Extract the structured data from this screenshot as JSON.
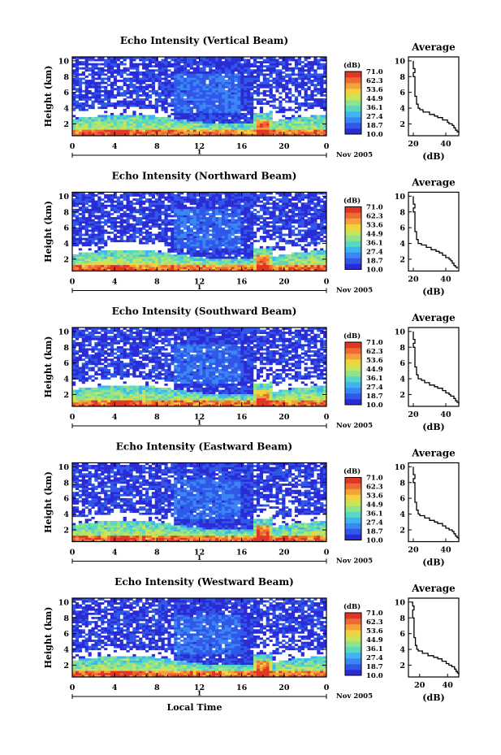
{
  "colors": {
    "colormap": [
      "#2b2bd6",
      "#2f57e8",
      "#3a86f5",
      "#3fb4f0",
      "#58d7c2",
      "#8ee38c",
      "#c8e55a",
      "#f2d13e",
      "#f5a13a",
      "#ef6a32",
      "#e03626"
    ],
    "background": "#ffffff",
    "profile_line": "#000000"
  },
  "common": {
    "time_label": "Local Time",
    "date_label": "Nov 2005",
    "day_marker": "1",
    "units_label": "(dB)",
    "avg_title": "Average",
    "avg_xlabel": "(dB)"
  },
  "chart_data": [
    {
      "type": "heatmap",
      "title": "Echo Intensity (Vertical Beam)",
      "ylabel": "Height (km)",
      "xlabel": "Local Time",
      "x_ticks": [
        "0",
        "4",
        "8",
        "12",
        "16",
        "20",
        "0"
      ],
      "xlim": [
        0,
        24
      ],
      "y_ticks": [
        "2",
        "4",
        "6",
        "8",
        "10"
      ],
      "ylim": [
        0.5,
        10.5
      ],
      "colorbar_ticks": [
        "71.0",
        "62.3",
        "53.6",
        "44.9",
        "36.1",
        "27.4",
        "18.7",
        "10.0"
      ],
      "colorbar_range": [
        10.0,
        71.0
      ],
      "average_profile": {
        "title": "Average",
        "xlabel": "(dB)",
        "x_ticks": [
          "20",
          "40"
        ],
        "xlim": [
          17,
          48
        ],
        "y_ticks": [
          "2",
          "4",
          "6",
          "8",
          "10"
        ],
        "ylim": [
          0.5,
          10.5
        ],
        "heights": [
          10,
          9.5,
          9,
          8.5,
          8,
          7.5,
          7,
          6.5,
          6,
          5.5,
          5,
          4.5,
          4,
          3.8,
          3.5,
          3.2,
          3,
          2.8,
          2.5,
          2.2,
          2,
          1.8,
          1.5,
          1.2,
          1,
          0.8
        ],
        "values": [
          20,
          20,
          20,
          21,
          20,
          21,
          21,
          21,
          21,
          21,
          22,
          22,
          23,
          24,
          26,
          30,
          33,
          35,
          38,
          41,
          42,
          44,
          45,
          46,
          47,
          48
        ]
      }
    },
    {
      "type": "heatmap",
      "title": "Echo Intensity (Northward Beam)",
      "ylabel": "Height (km)",
      "xlabel": "Local Time",
      "x_ticks": [
        "0",
        "4",
        "8",
        "12",
        "16",
        "20",
        "0"
      ],
      "xlim": [
        0,
        24
      ],
      "y_ticks": [
        "2",
        "4",
        "6",
        "8",
        "10"
      ],
      "ylim": [
        0.5,
        10.5
      ],
      "colorbar_ticks": [
        "71.0",
        "62.3",
        "53.6",
        "44.9",
        "36.1",
        "27.4",
        "18.7",
        "10.0"
      ],
      "colorbar_range": [
        10.0,
        71.0
      ],
      "average_profile": {
        "title": "Average",
        "xlabel": "(dB)",
        "x_ticks": [
          "20",
          "40"
        ],
        "xlim": [
          17,
          48
        ],
        "y_ticks": [
          "2",
          "4",
          "6",
          "8",
          "10"
        ],
        "ylim": [
          0.5,
          10.5
        ],
        "heights": [
          10,
          9.5,
          9,
          8.5,
          8,
          7.5,
          7,
          6.5,
          6,
          5.5,
          5,
          4.5,
          4,
          3.8,
          3.5,
          3.2,
          3,
          2.8,
          2.5,
          2.2,
          2,
          1.8,
          1.5,
          1.2,
          1,
          0.8
        ],
        "values": [
          20,
          20,
          20,
          21,
          20,
          21,
          21,
          21,
          21,
          21,
          22,
          22,
          23,
          25,
          28,
          31,
          34,
          36,
          38,
          40,
          42,
          43,
          44,
          45,
          46,
          47
        ]
      }
    },
    {
      "type": "heatmap",
      "title": "Echo Intensity (Southward Beam)",
      "ylabel": "Height (km)",
      "xlabel": "Local Time",
      "x_ticks": [
        "0",
        "4",
        "8",
        "12",
        "16",
        "20",
        "0"
      ],
      "xlim": [
        0,
        24
      ],
      "y_ticks": [
        "2",
        "4",
        "6",
        "8",
        "10"
      ],
      "ylim": [
        0.5,
        10.5
      ],
      "colorbar_ticks": [
        "71.0",
        "62.3",
        "53.6",
        "44.9",
        "36.1",
        "27.4",
        "18.7",
        "10.0"
      ],
      "colorbar_range": [
        10.0,
        71.0
      ],
      "average_profile": {
        "title": "Average",
        "xlabel": "(dB)",
        "x_ticks": [
          "20",
          "40"
        ],
        "xlim": [
          17,
          48
        ],
        "y_ticks": [
          "2",
          "4",
          "6",
          "8",
          "10"
        ],
        "ylim": [
          0.5,
          10.5
        ],
        "heights": [
          10,
          9.5,
          9,
          8.5,
          8,
          7.5,
          7,
          6.5,
          6,
          5.5,
          5,
          4.5,
          4,
          3.8,
          3.5,
          3.2,
          3,
          2.8,
          2.5,
          2.2,
          2,
          1.8,
          1.5,
          1.2,
          1,
          0.8
        ],
        "values": [
          20,
          20,
          20,
          21,
          20,
          21,
          21,
          21,
          21,
          21,
          22,
          22,
          23,
          25,
          27,
          30,
          33,
          35,
          38,
          40,
          42,
          43,
          45,
          46,
          47,
          48
        ]
      }
    },
    {
      "type": "heatmap",
      "title": "Echo Intensity (Eastward Beam)",
      "ylabel": "Height (km)",
      "xlabel": "Local Time",
      "x_ticks": [
        "0",
        "4",
        "8",
        "12",
        "16",
        "20",
        "0"
      ],
      "xlim": [
        0,
        24
      ],
      "y_ticks": [
        "2",
        "4",
        "6",
        "8",
        "10"
      ],
      "ylim": [
        0.5,
        10.5
      ],
      "colorbar_ticks": [
        "71.0",
        "62.3",
        "53.6",
        "44.9",
        "36.1",
        "27.4",
        "18.7",
        "10.0"
      ],
      "colorbar_range": [
        10.0,
        71.0
      ],
      "average_profile": {
        "title": "Average",
        "xlabel": "(dB)",
        "x_ticks": [
          "20",
          "40"
        ],
        "xlim": [
          17,
          48
        ],
        "y_ticks": [
          "2",
          "4",
          "6",
          "8",
          "10"
        ],
        "ylim": [
          0.5,
          10.5
        ],
        "heights": [
          10,
          9.5,
          9,
          8.5,
          8,
          7.5,
          7,
          6.5,
          6,
          5.5,
          5,
          4.5,
          4,
          3.8,
          3.5,
          3.2,
          3,
          2.8,
          2.5,
          2.2,
          2,
          1.8,
          1.5,
          1.2,
          1,
          0.8
        ],
        "values": [
          20,
          20,
          20,
          21,
          20,
          21,
          21,
          21,
          21,
          21,
          22,
          22,
          23,
          24,
          27,
          30,
          33,
          35,
          38,
          40,
          42,
          44,
          45,
          46,
          47,
          48
        ]
      }
    },
    {
      "type": "heatmap",
      "title": "Echo Intensity (Westward Beam)",
      "ylabel": "Height (km)",
      "xlabel": "Local Time",
      "x_ticks": [
        "0",
        "4",
        "8",
        "12",
        "16",
        "20",
        "0"
      ],
      "xlim": [
        0,
        24
      ],
      "y_ticks": [
        "2",
        "4",
        "6",
        "8",
        "10"
      ],
      "ylim": [
        0.5,
        10.5
      ],
      "colorbar_ticks": [
        "71.0",
        "62.3",
        "53.6",
        "44.9",
        "36.1",
        "27.4",
        "18.7",
        "10.0"
      ],
      "colorbar_range": [
        10.0,
        71.0
      ],
      "average_profile": {
        "title": "Average",
        "xlabel": "(dB)",
        "x_ticks": [
          "20",
          "40"
        ],
        "xlim": [
          12,
          48
        ],
        "y_ticks": [
          "2",
          "4",
          "6",
          "8",
          "10"
        ],
        "ylim": [
          0.5,
          10.5
        ],
        "heights": [
          10,
          9.5,
          9,
          8.5,
          8,
          7.5,
          7,
          6.5,
          6,
          5.5,
          5,
          4.5,
          4,
          3.8,
          3.5,
          3.2,
          3,
          2.8,
          2.5,
          2.2,
          2,
          1.8,
          1.5,
          1.2,
          1,
          0.8
        ],
        "values": [
          14,
          15,
          16,
          15,
          15,
          16,
          16,
          16,
          16,
          16,
          17,
          17,
          18,
          19,
          22,
          26,
          30,
          33,
          36,
          39,
          41,
          43,
          45,
          46,
          47,
          48
        ]
      }
    }
  ]
}
